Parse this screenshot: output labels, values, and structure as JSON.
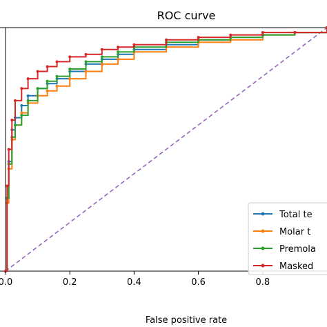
{
  "chart_data": {
    "type": "line",
    "title": "ROC curve",
    "xlabel": "False positive rate",
    "ylabel": "",
    "xlim": [
      0,
      1
    ],
    "ylim": [
      0,
      1
    ],
    "x_ticks": [
      "0.0",
      "0.2",
      "0.4",
      "0.6",
      "0.8"
    ],
    "x_tick_values": [
      0,
      0.2,
      0.4,
      0.6,
      0.8
    ],
    "grid": false,
    "legend_position": "bottom-right",
    "series": [
      {
        "name": "Total te",
        "color": "#1f77b4",
        "points": [
          [
            0,
            0
          ],
          [
            0.005,
            0.3
          ],
          [
            0.01,
            0.45
          ],
          [
            0.02,
            0.58
          ],
          [
            0.03,
            0.63
          ],
          [
            0.05,
            0.68
          ],
          [
            0.07,
            0.72
          ],
          [
            0.1,
            0.75
          ],
          [
            0.13,
            0.77
          ],
          [
            0.16,
            0.79
          ],
          [
            0.2,
            0.82
          ],
          [
            0.25,
            0.85
          ],
          [
            0.3,
            0.87
          ],
          [
            0.35,
            0.89
          ],
          [
            0.4,
            0.91
          ],
          [
            0.5,
            0.93
          ],
          [
            0.6,
            0.95
          ],
          [
            0.7,
            0.96
          ],
          [
            0.8,
            0.97
          ],
          [
            0.9,
            0.98
          ],
          [
            1,
            1
          ]
        ]
      },
      {
        "name": "Molar t",
        "color": "#ff7f0e",
        "points": [
          [
            0,
            0
          ],
          [
            0.005,
            0.28
          ],
          [
            0.01,
            0.42
          ],
          [
            0.02,
            0.54
          ],
          [
            0.03,
            0.6
          ],
          [
            0.05,
            0.65
          ],
          [
            0.07,
            0.69
          ],
          [
            0.1,
            0.72
          ],
          [
            0.13,
            0.74
          ],
          [
            0.16,
            0.76
          ],
          [
            0.2,
            0.79
          ],
          [
            0.25,
            0.82
          ],
          [
            0.3,
            0.85
          ],
          [
            0.35,
            0.87
          ],
          [
            0.4,
            0.9
          ],
          [
            0.5,
            0.92
          ],
          [
            0.6,
            0.94
          ],
          [
            0.7,
            0.95
          ],
          [
            0.8,
            0.97
          ],
          [
            0.9,
            0.98
          ],
          [
            1,
            1
          ]
        ]
      },
      {
        "name": "Premola",
        "color": "#2ca02c",
        "points": [
          [
            0,
            0
          ],
          [
            0.005,
            0.3
          ],
          [
            0.01,
            0.44
          ],
          [
            0.02,
            0.55
          ],
          [
            0.03,
            0.6
          ],
          [
            0.05,
            0.64
          ],
          [
            0.07,
            0.7
          ],
          [
            0.1,
            0.75
          ],
          [
            0.13,
            0.78
          ],
          [
            0.16,
            0.8
          ],
          [
            0.2,
            0.83
          ],
          [
            0.25,
            0.86
          ],
          [
            0.3,
            0.88
          ],
          [
            0.35,
            0.9
          ],
          [
            0.4,
            0.92
          ],
          [
            0.5,
            0.94
          ],
          [
            0.6,
            0.95
          ],
          [
            0.7,
            0.96
          ],
          [
            0.8,
            0.97
          ],
          [
            0.9,
            0.98
          ],
          [
            1,
            1
          ]
        ]
      },
      {
        "name": "Masked",
        "color": "#d62728",
        "points": [
          [
            0,
            0
          ],
          [
            0.005,
            0.35
          ],
          [
            0.01,
            0.5
          ],
          [
            0.02,
            0.62
          ],
          [
            0.03,
            0.7
          ],
          [
            0.05,
            0.75
          ],
          [
            0.07,
            0.79
          ],
          [
            0.1,
            0.82
          ],
          [
            0.13,
            0.84
          ],
          [
            0.16,
            0.86
          ],
          [
            0.2,
            0.88
          ],
          [
            0.25,
            0.89
          ],
          [
            0.3,
            0.91
          ],
          [
            0.35,
            0.92
          ],
          [
            0.4,
            0.93
          ],
          [
            0.5,
            0.95
          ],
          [
            0.6,
            0.96
          ],
          [
            0.7,
            0.97
          ],
          [
            0.8,
            0.98
          ],
          [
            0.9,
            0.98
          ],
          [
            1,
            1
          ]
        ]
      }
    ],
    "reference_line": {
      "color": "#9467bd",
      "points": [
        [
          0,
          0
        ],
        [
          1,
          1
        ]
      ]
    }
  }
}
